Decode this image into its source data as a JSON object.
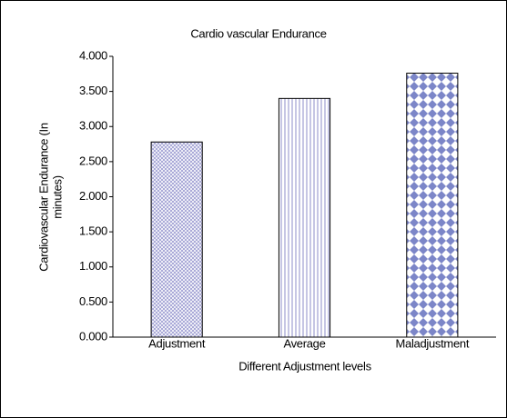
{
  "chart_data": {
    "type": "bar",
    "title": "Cardio vascular Endurance",
    "ylabel": [
      "Cardiovascular Endurance (In",
      "minutes)"
    ],
    "xlabel": "Different Adjustment levels",
    "categories": [
      "Adjustment",
      "Average",
      "Maladjustment"
    ],
    "values": [
      2.78,
      3.4,
      3.76
    ],
    "ylim": [
      0,
      4
    ],
    "yticks": [
      {
        "value": 0,
        "label": "0.000"
      },
      {
        "value": 0.5,
        "label": "0.500"
      },
      {
        "value": 1,
        "label": "1.000"
      },
      {
        "value": 1.5,
        "label": "1.500"
      },
      {
        "value": 2,
        "label": "2.000"
      },
      {
        "value": 2.5,
        "label": "2.500"
      },
      {
        "value": 3,
        "label": "3.000"
      },
      {
        "value": 3.5,
        "label": "3.500"
      },
      {
        "value": 4,
        "label": "4.000"
      }
    ],
    "grid": false
  }
}
